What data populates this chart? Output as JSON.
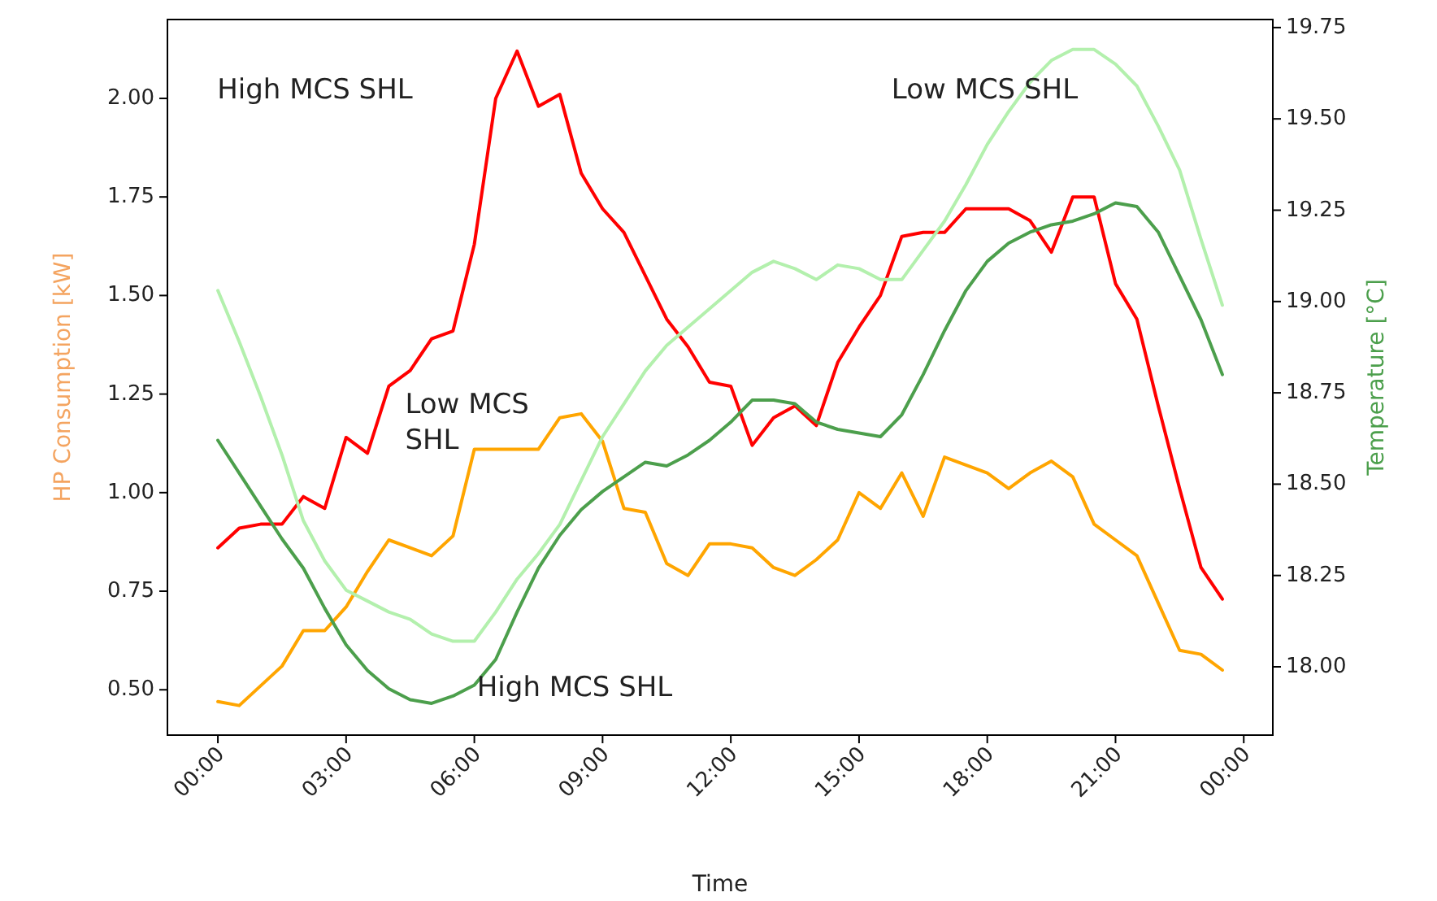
{
  "chart_data": {
    "type": "line",
    "xlabel": "Time",
    "ylabel": "HP Consumption [kW]",
    "y2label": "Temperature [°C]",
    "x": [
      0,
      0.5,
      1,
      1.5,
      2,
      2.5,
      3,
      3.5,
      4,
      4.5,
      5,
      5.5,
      6,
      6.5,
      7,
      7.5,
      8,
      8.5,
      9,
      9.5,
      10,
      10.5,
      11,
      11.5,
      12,
      12.5,
      13,
      13.5,
      14,
      14.5,
      15,
      15.5,
      16,
      16.5,
      17,
      17.5,
      18,
      18.5,
      19,
      19.5,
      20,
      20.5,
      21,
      21.5,
      22,
      22.5,
      23,
      23.5
    ],
    "xlim": [
      -1.18,
      24.68
    ],
    "xticks": [
      {
        "value": 0,
        "label": "00:00"
      },
      {
        "value": 3,
        "label": "03:00"
      },
      {
        "value": 6,
        "label": "06:00"
      },
      {
        "value": 9,
        "label": "09:00"
      },
      {
        "value": 12,
        "label": "12:00"
      },
      {
        "value": 15,
        "label": "15:00"
      },
      {
        "value": 18,
        "label": "18:00"
      },
      {
        "value": 21,
        "label": "21:00"
      },
      {
        "value": 24,
        "label": "00:00"
      }
    ],
    "ylim": [
      0.385,
      2.2
    ],
    "yticks": [
      {
        "value": 0.5,
        "label": "0.50"
      },
      {
        "value": 0.75,
        "label": "0.75"
      },
      {
        "value": 1,
        "label": "1.00"
      },
      {
        "value": 1.25,
        "label": "1.25"
      },
      {
        "value": 1.5,
        "label": "1.50"
      },
      {
        "value": 1.75,
        "label": "1.75"
      },
      {
        "value": 2,
        "label": "2.00"
      }
    ],
    "y2lim": [
      17.813,
      19.772
    ],
    "y2ticks": [
      {
        "value": 18,
        "label": "18.00"
      },
      {
        "value": 18.25,
        "label": "18.25"
      },
      {
        "value": 18.5,
        "label": "18.50"
      },
      {
        "value": 18.75,
        "label": "18.75"
      },
      {
        "value": 19,
        "label": "19.00"
      },
      {
        "value": 19.25,
        "label": "19.25"
      },
      {
        "value": 19.5,
        "label": "19.50"
      },
      {
        "value": 19.75,
        "label": "19.75"
      }
    ],
    "series": [
      {
        "color": "#ff0000",
        "values": [
          0.86,
          0.91,
          0.92,
          0.92,
          0.99,
          0.96,
          1.14,
          1.1,
          1.27,
          1.31,
          1.39,
          1.41,
          1.63,
          2.0,
          2.12,
          1.98,
          2.01,
          1.81,
          1.72,
          1.66,
          1.55,
          1.44,
          1.37,
          1.28,
          1.27,
          1.12,
          1.19,
          1.22,
          1.17,
          1.33,
          1.42,
          1.5,
          1.65,
          1.66,
          1.66,
          1.72,
          1.72,
          1.72,
          1.69,
          1.61,
          1.75,
          1.75,
          1.53,
          1.44,
          1.22,
          1.01,
          0.81,
          0.73
        ]
      },
      {
        "color": "#ffa500",
        "values": [
          0.47,
          0.46,
          0.51,
          0.56,
          0.65,
          0.65,
          0.71,
          0.8,
          0.88,
          0.86,
          0.84,
          0.89,
          1.11,
          1.11,
          1.11,
          1.11,
          1.19,
          1.2,
          1.13,
          0.96,
          0.95,
          0.82,
          0.79,
          0.87,
          0.87,
          0.86,
          0.81,
          0.79,
          0.83,
          0.88,
          1.0,
          0.96,
          1.05,
          0.94,
          1.09,
          1.07,
          1.05,
          1.01,
          1.05,
          1.08,
          1.04,
          0.92,
          0.88,
          0.84,
          0.72,
          0.6,
          0.59,
          0.55
        ]
      },
      {
        "color": "#4c9f4c",
        "axis": "y2",
        "values": [
          18.62,
          18.53,
          18.44,
          18.35,
          18.27,
          18.16,
          18.06,
          17.99,
          17.94,
          17.91,
          17.9,
          17.92,
          17.95,
          18.02,
          18.15,
          18.27,
          18.36,
          18.43,
          18.48,
          18.52,
          18.56,
          18.55,
          18.58,
          18.62,
          18.67,
          18.73,
          18.73,
          18.72,
          18.67,
          18.65,
          18.64,
          18.63,
          18.69,
          18.8,
          18.92,
          19.03,
          19.11,
          19.16,
          19.19,
          19.21,
          19.22,
          19.24,
          19.27,
          19.26,
          19.19,
          19.07,
          18.95,
          18.8
        ]
      },
      {
        "color": "#b3f0ad",
        "axis": "y2",
        "values": [
          19.03,
          18.89,
          18.74,
          18.58,
          18.4,
          18.29,
          18.21,
          18.18,
          18.15,
          18.13,
          18.09,
          18.07,
          18.07,
          18.15,
          18.24,
          18.31,
          18.39,
          18.51,
          18.63,
          18.72,
          18.81,
          18.88,
          18.93,
          18.98,
          19.03,
          19.08,
          19.11,
          19.09,
          19.06,
          19.1,
          19.09,
          19.06,
          19.06,
          19.14,
          19.22,
          19.32,
          19.43,
          19.52,
          19.6,
          19.66,
          19.69,
          19.69,
          19.65,
          19.59,
          19.48,
          19.36,
          19.17,
          18.99
        ]
      }
    ],
    "annotations": [
      "High MCS SHL",
      "Low MCS SHL",
      "Low MCS\nSHL",
      "High MCS SHL"
    ]
  }
}
